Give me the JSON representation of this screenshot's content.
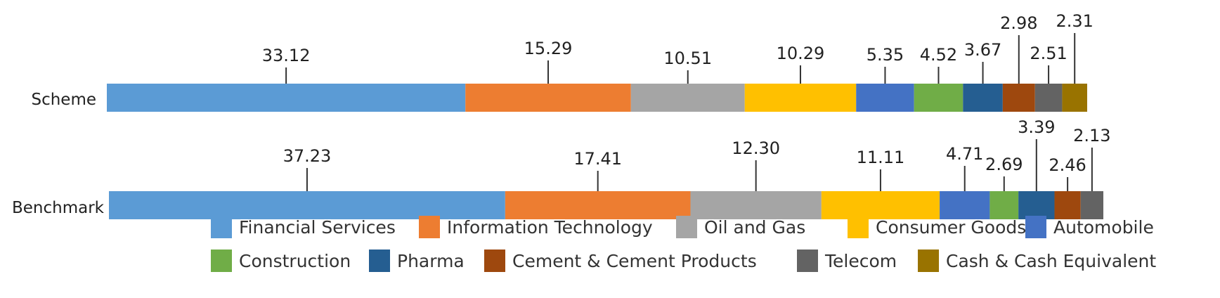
{
  "chart_data": {
    "type": "bar",
    "orientation": "horizontal",
    "stacked": true,
    "categories": [
      "Scheme",
      "Benchmark"
    ],
    "series": [
      {
        "name": "Financial Services",
        "color": "#5B9BD5",
        "values": [
          33.12,
          37.23
        ]
      },
      {
        "name": "Information Technology",
        "color": "#ED7D31",
        "values": [
          15.29,
          17.41
        ]
      },
      {
        "name": "Oil and Gas",
        "color": "#A5A5A5",
        "values": [
          10.51,
          12.3
        ]
      },
      {
        "name": "Consumer Goods",
        "color": "#FFC000",
        "values": [
          10.29,
          11.11
        ]
      },
      {
        "name": "Automobile",
        "color": "#4472C4",
        "values": [
          5.35,
          4.71
        ]
      },
      {
        "name": "Construction",
        "color": "#70AD47",
        "values": [
          4.52,
          2.69
        ]
      },
      {
        "name": "Pharma",
        "color": "#255E91",
        "values": [
          3.67,
          3.39
        ]
      },
      {
        "name": "Cement & Cement Products",
        "color": "#9E480E",
        "values": [
          2.98,
          2.46
        ]
      },
      {
        "name": "Telecom",
        "color": "#636363",
        "values": [
          2.51,
          2.13
        ]
      },
      {
        "name": "Cash & Cash Equivalent",
        "color": "#997300",
        "values": [
          2.31,
          null
        ]
      }
    ],
    "data_labels": {
      "Scheme": [
        "33.12",
        "15.29",
        "10.51",
        "10.29",
        "5.35",
        "4.52",
        "3.67",
        "2.98",
        "2.51",
        "2.31"
      ],
      "Benchmark": [
        "37.23",
        "17.41",
        "12.30",
        "11.11",
        "4.71",
        "2.69",
        "3.39",
        "2.46",
        "2.13",
        ""
      ]
    },
    "legend_position": "bottom",
    "title": "",
    "xlabel": "",
    "ylabel": ""
  }
}
